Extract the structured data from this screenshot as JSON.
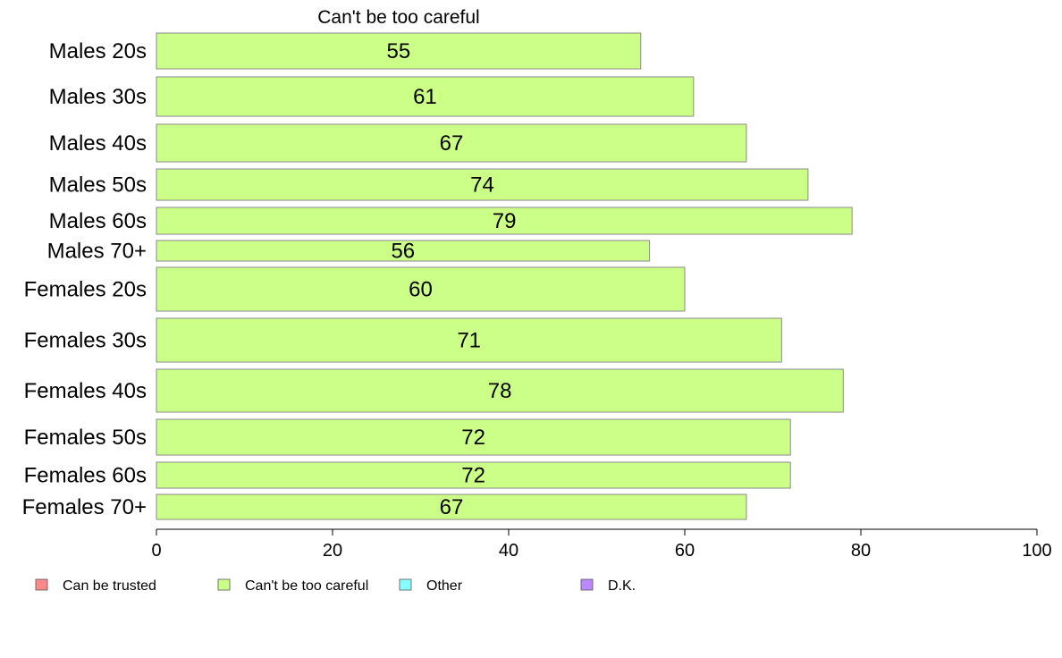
{
  "chart_data": {
    "type": "bar",
    "orientation": "horizontal",
    "title": "Can't be too careful",
    "xlabel": "",
    "ylabel": "",
    "xlim": [
      0,
      100
    ],
    "xticks": [
      0,
      20,
      40,
      60,
      80,
      100
    ],
    "grid": false,
    "legend_position": "bottom",
    "categories": [
      "Males 20s",
      "Males 30s",
      "Males 40s",
      "Males 50s",
      "Males 60s",
      "Males 70+",
      "Females 20s",
      "Females 30s",
      "Females 40s",
      "Females 50s",
      "Females 60s",
      "Females 70+"
    ],
    "series": [
      {
        "name": "Can't be too careful",
        "color": "#ccff88",
        "values": [
          55,
          61,
          67,
          74,
          79,
          56,
          60,
          71,
          78,
          72,
          72,
          67
        ]
      }
    ],
    "legend": [
      {
        "name": "Can be trusted",
        "color": "#ff8888"
      },
      {
        "name": "Can't be too careful",
        "color": "#ccff88"
      },
      {
        "name": "Other",
        "color": "#88ffff"
      },
      {
        "name": "D.K.",
        "color": "#bb88ff"
      }
    ]
  }
}
